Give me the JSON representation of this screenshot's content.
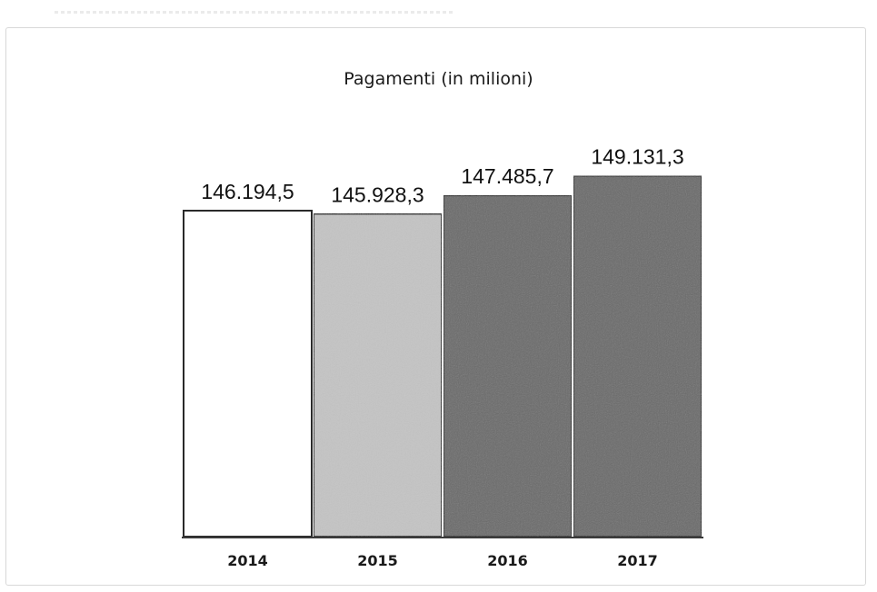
{
  "chart_data": {
    "type": "bar",
    "title": "Pagamenti (in milioni)",
    "categories": [
      "2014",
      "2015",
      "2016",
      "2017"
    ],
    "values": [
      146194.5,
      145928.3,
      147485.7,
      149131.3
    ],
    "value_labels": [
      "146.194,5",
      "145.928,3",
      "147.485,7",
      "149.131,3"
    ],
    "xlabel": "",
    "ylabel": "",
    "ylim": [
      0,
      150000
    ],
    "bar_colors": [
      "#ffffff",
      "#c4c4c4",
      "#6b6b6b",
      "#6b6b6b"
    ],
    "bar_border_color": "#2a2a2a",
    "grid": false,
    "legend": "none"
  }
}
